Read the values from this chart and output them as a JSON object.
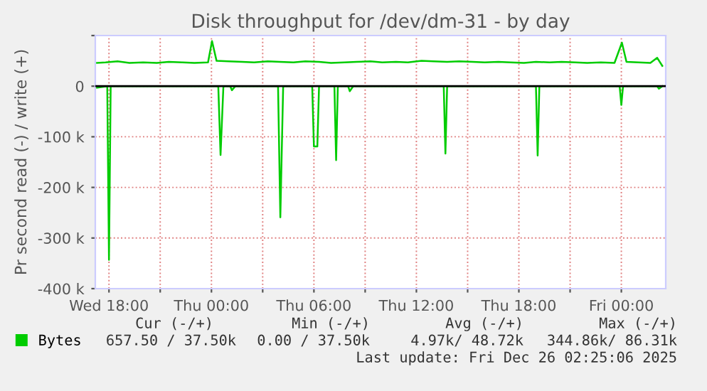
{
  "chart_data": {
    "type": "line",
    "title": "Disk throughput for /dev/dm-31 - by day",
    "ylabel": "Pr second read (-) / write (+)",
    "xlim": [
      "2025-12-24T17:12",
      "2025-12-26T02:36"
    ],
    "ylim": [
      -400000,
      100000
    ],
    "xticks": [
      {
        "value": "2025-12-24T18:00",
        "label": "Wed 18:00"
      },
      {
        "value": "2025-12-24T21:00",
        "label": null
      },
      {
        "value": "2025-12-25T00:00",
        "label": "Thu 00:00"
      },
      {
        "value": "2025-12-25T03:00",
        "label": null
      },
      {
        "value": "2025-12-25T06:00",
        "label": "Thu 06:00"
      },
      {
        "value": "2025-12-25T09:00",
        "label": null
      },
      {
        "value": "2025-12-25T12:00",
        "label": "Thu 12:00"
      },
      {
        "value": "2025-12-25T15:00",
        "label": null
      },
      {
        "value": "2025-12-25T18:00",
        "label": "Thu 18:00"
      },
      {
        "value": "2025-12-25T21:00",
        "label": null
      },
      {
        "value": "2025-12-26T00:00",
        "label": "Fri 00:00"
      }
    ],
    "yticks": [
      {
        "value": 0,
        "label": "0"
      },
      {
        "value": -100000,
        "label": "-100 k"
      },
      {
        "value": -200000,
        "label": "-200 k"
      },
      {
        "value": -300000,
        "label": "-300 k"
      },
      {
        "value": -400000,
        "label": "-400 k"
      },
      {
        "value": 100000,
        "label": null
      }
    ],
    "grid": true,
    "legend": "bottom",
    "ref_lines": [
      {
        "axis": "y",
        "value": 0,
        "color": "#000000"
      }
    ],
    "series": [
      {
        "name": "Bytes",
        "color": "#00cc00",
        "x": [
          "2025-12-24T17:18",
          "2025-12-24T17:48",
          "2025-12-24T18:30",
          "2025-12-24T19:12",
          "2025-12-24T20:00",
          "2025-12-24T20:48",
          "2025-12-24T21:30",
          "2025-12-24T22:18",
          "2025-12-24T23:00",
          "2025-12-24T23:48",
          "2025-12-25T00:02",
          "2025-12-25T00:18",
          "2025-12-25T01:00",
          "2025-12-25T01:48",
          "2025-12-25T02:30",
          "2025-12-25T03:18",
          "2025-12-25T04:00",
          "2025-12-25T04:48",
          "2025-12-25T05:30",
          "2025-12-25T06:18",
          "2025-12-25T07:00",
          "2025-12-25T07:48",
          "2025-12-25T08:30",
          "2025-12-25T09:18",
          "2025-12-25T10:00",
          "2025-12-25T10:48",
          "2025-12-25T11:30",
          "2025-12-25T12:18",
          "2025-12-25T13:00",
          "2025-12-25T13:48",
          "2025-12-25T14:30",
          "2025-12-25T15:18",
          "2025-12-25T16:00",
          "2025-12-25T16:48",
          "2025-12-25T17:30",
          "2025-12-25T18:18",
          "2025-12-25T19:00",
          "2025-12-25T19:48",
          "2025-12-25T20:30",
          "2025-12-25T21:18",
          "2025-12-25T22:00",
          "2025-12-25T22:48",
          "2025-12-25T23:36",
          "2025-12-26T00:02",
          "2025-12-26T00:18",
          "2025-12-26T01:00",
          "2025-12-26T01:42",
          "2025-12-26T02:06",
          "2025-12-26T02:24"
        ],
        "values": [
          46000,
          47000,
          49000,
          46000,
          47000,
          46000,
          48000,
          47000,
          46000,
          47000,
          89000,
          50000,
          49000,
          48000,
          47000,
          49000,
          48000,
          47000,
          49000,
          48000,
          46000,
          47000,
          48000,
          49000,
          47000,
          48000,
          47000,
          50000,
          49000,
          48000,
          49000,
          48000,
          47000,
          48000,
          47000,
          46000,
          48000,
          47000,
          48000,
          47000,
          46000,
          47000,
          46000,
          86000,
          48000,
          47000,
          46000,
          56000,
          40000
        ]
      },
      {
        "color": "#00cc00",
        "x": [
          "2025-12-24T17:18",
          "2025-12-24T17:54",
          "2025-12-24T18:00",
          "2025-12-24T18:06",
          "2025-12-24T20:00",
          "2025-12-24T23:00",
          "2025-12-25T00:24",
          "2025-12-25T00:32",
          "2025-12-25T00:42",
          "2025-12-25T01:06",
          "2025-12-25T01:12",
          "2025-12-25T01:24",
          "2025-12-25T03:54",
          "2025-12-25T04:02",
          "2025-12-25T04:12",
          "2025-12-25T05:54",
          "2025-12-25T06:00",
          "2025-12-25T06:12",
          "2025-12-25T06:18",
          "2025-12-25T07:12",
          "2025-12-25T07:18",
          "2025-12-25T07:24",
          "2025-12-25T08:00",
          "2025-12-25T08:06",
          "2025-12-25T08:18",
          "2025-12-25T11:00",
          "2025-12-25T13:36",
          "2025-12-25T13:42",
          "2025-12-25T13:48",
          "2025-12-25T16:00",
          "2025-12-25T19:00",
          "2025-12-25T19:06",
          "2025-12-25T19:12",
          "2025-12-25T22:00",
          "2025-12-25T23:54",
          "2025-12-26T00:00",
          "2025-12-26T00:06",
          "2025-12-26T01:00",
          "2025-12-26T02:06",
          "2025-12-26T02:12",
          "2025-12-26T02:24"
        ],
        "values": [
          -3000,
          0,
          -343000,
          0,
          0,
          0,
          0,
          -136000,
          0,
          0,
          -8000,
          0,
          0,
          -259000,
          0,
          0,
          -119000,
          -119000,
          0,
          0,
          -146000,
          0,
          0,
          -10000,
          0,
          0,
          0,
          -133000,
          0,
          0,
          0,
          -137000,
          0,
          0,
          0,
          -37000,
          0,
          0,
          0,
          -5000,
          0
        ]
      }
    ],
    "annotations": [
      "Cur (-/+)",
      "Min (-/+)",
      "Avg (-/+)",
      "Max (-/+)",
      "657.50 / 37.50k",
      "0.00 / 37.50k",
      "4.97k/ 48.72k",
      "344.86k/ 86.31k",
      "Last update: Fri Dec 26 02:25:06 2025"
    ]
  }
}
